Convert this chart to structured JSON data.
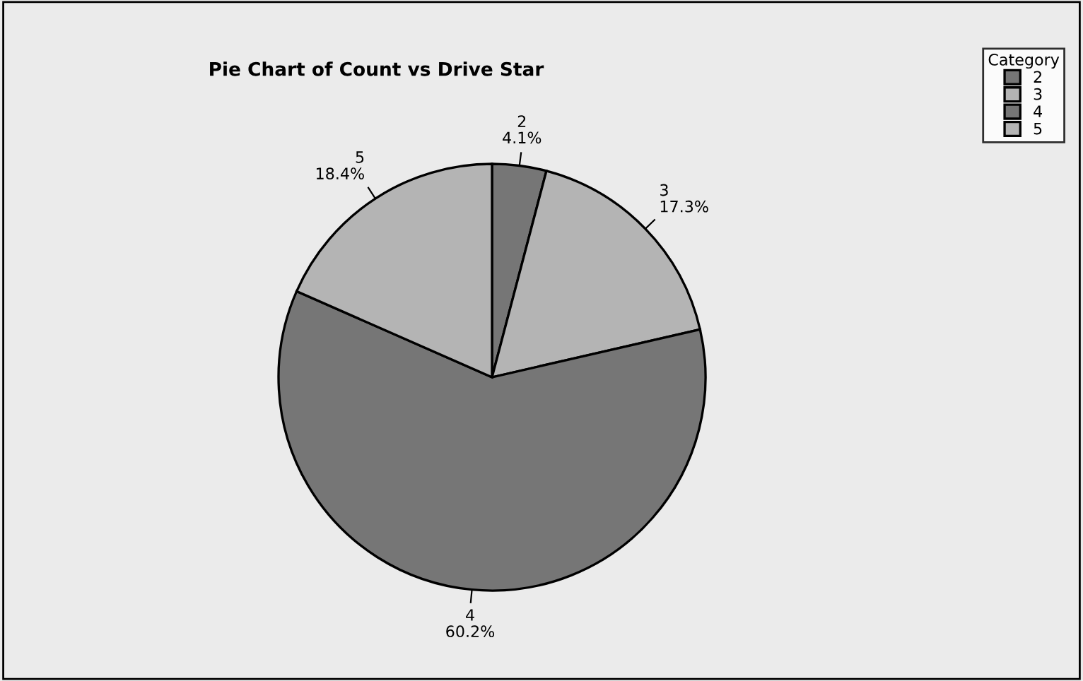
{
  "chart_data": {
    "type": "pie",
    "title": "Pie Chart of Count vs Drive Star",
    "categories": [
      "2",
      "3",
      "4",
      "5"
    ],
    "values": [
      4.1,
      17.3,
      60.2,
      18.4
    ],
    "value_labels": [
      "4.1%",
      "17.3%",
      "60.2%",
      "18.4%"
    ],
    "colors": [
      "#767676",
      "#b4b4b4",
      "#767676",
      "#b4b4b4"
    ],
    "legend_title": "Category",
    "legend": "top right"
  }
}
